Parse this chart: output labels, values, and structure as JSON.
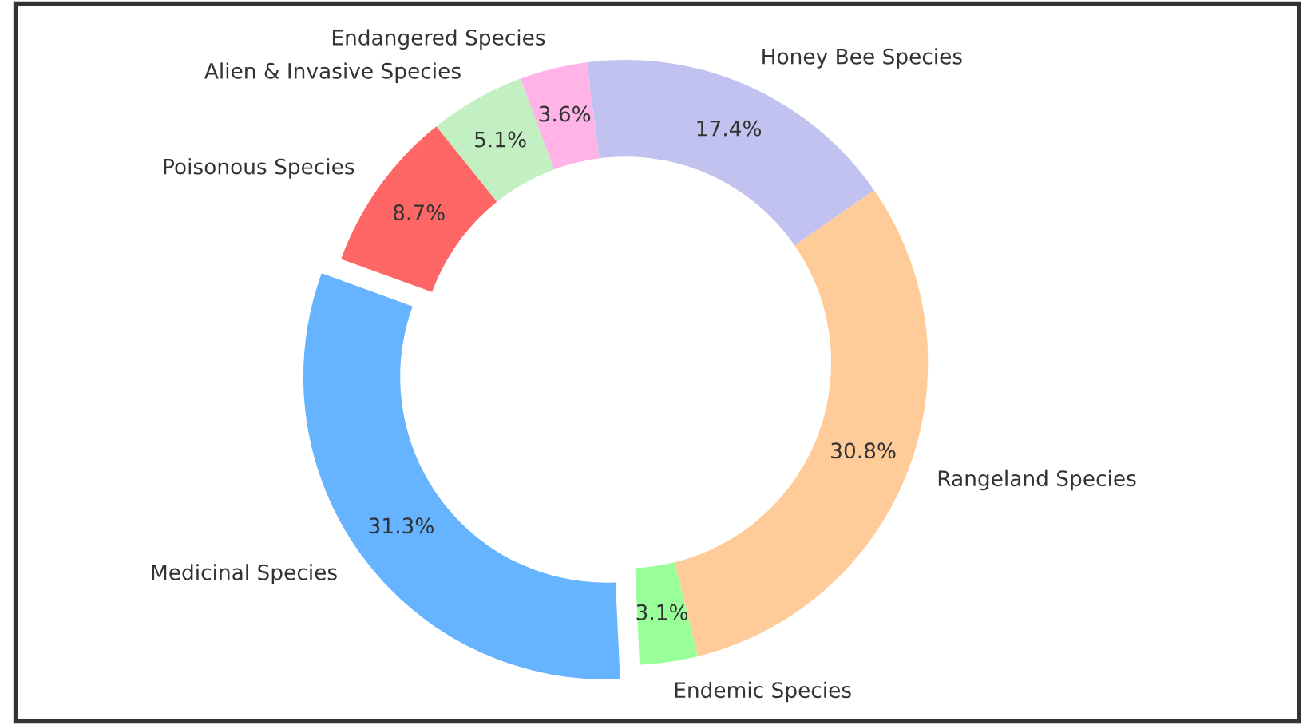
{
  "chart_data": {
    "type": "donut",
    "categories": [
      "Medicinal Species",
      "Endemic Species",
      "Rangeland Species",
      "Honey Bee Species",
      "Endangered Species",
      "Alien & Invasive Species",
      "Poisonous Species"
    ],
    "values": [
      31.3,
      3.1,
      30.8,
      17.4,
      3.6,
      5.1,
      8.7
    ],
    "value_labels": [
      "31.3%",
      "3.1%",
      "30.8%",
      "17.4%",
      "3.6%",
      "5.1%",
      "8.7%"
    ],
    "colors": [
      "#66b3ff",
      "#99ff99",
      "#ffcc99",
      "#c2c2f0",
      "#ffb3e6",
      "#c2f0c2",
      "#ff6666"
    ]
  }
}
